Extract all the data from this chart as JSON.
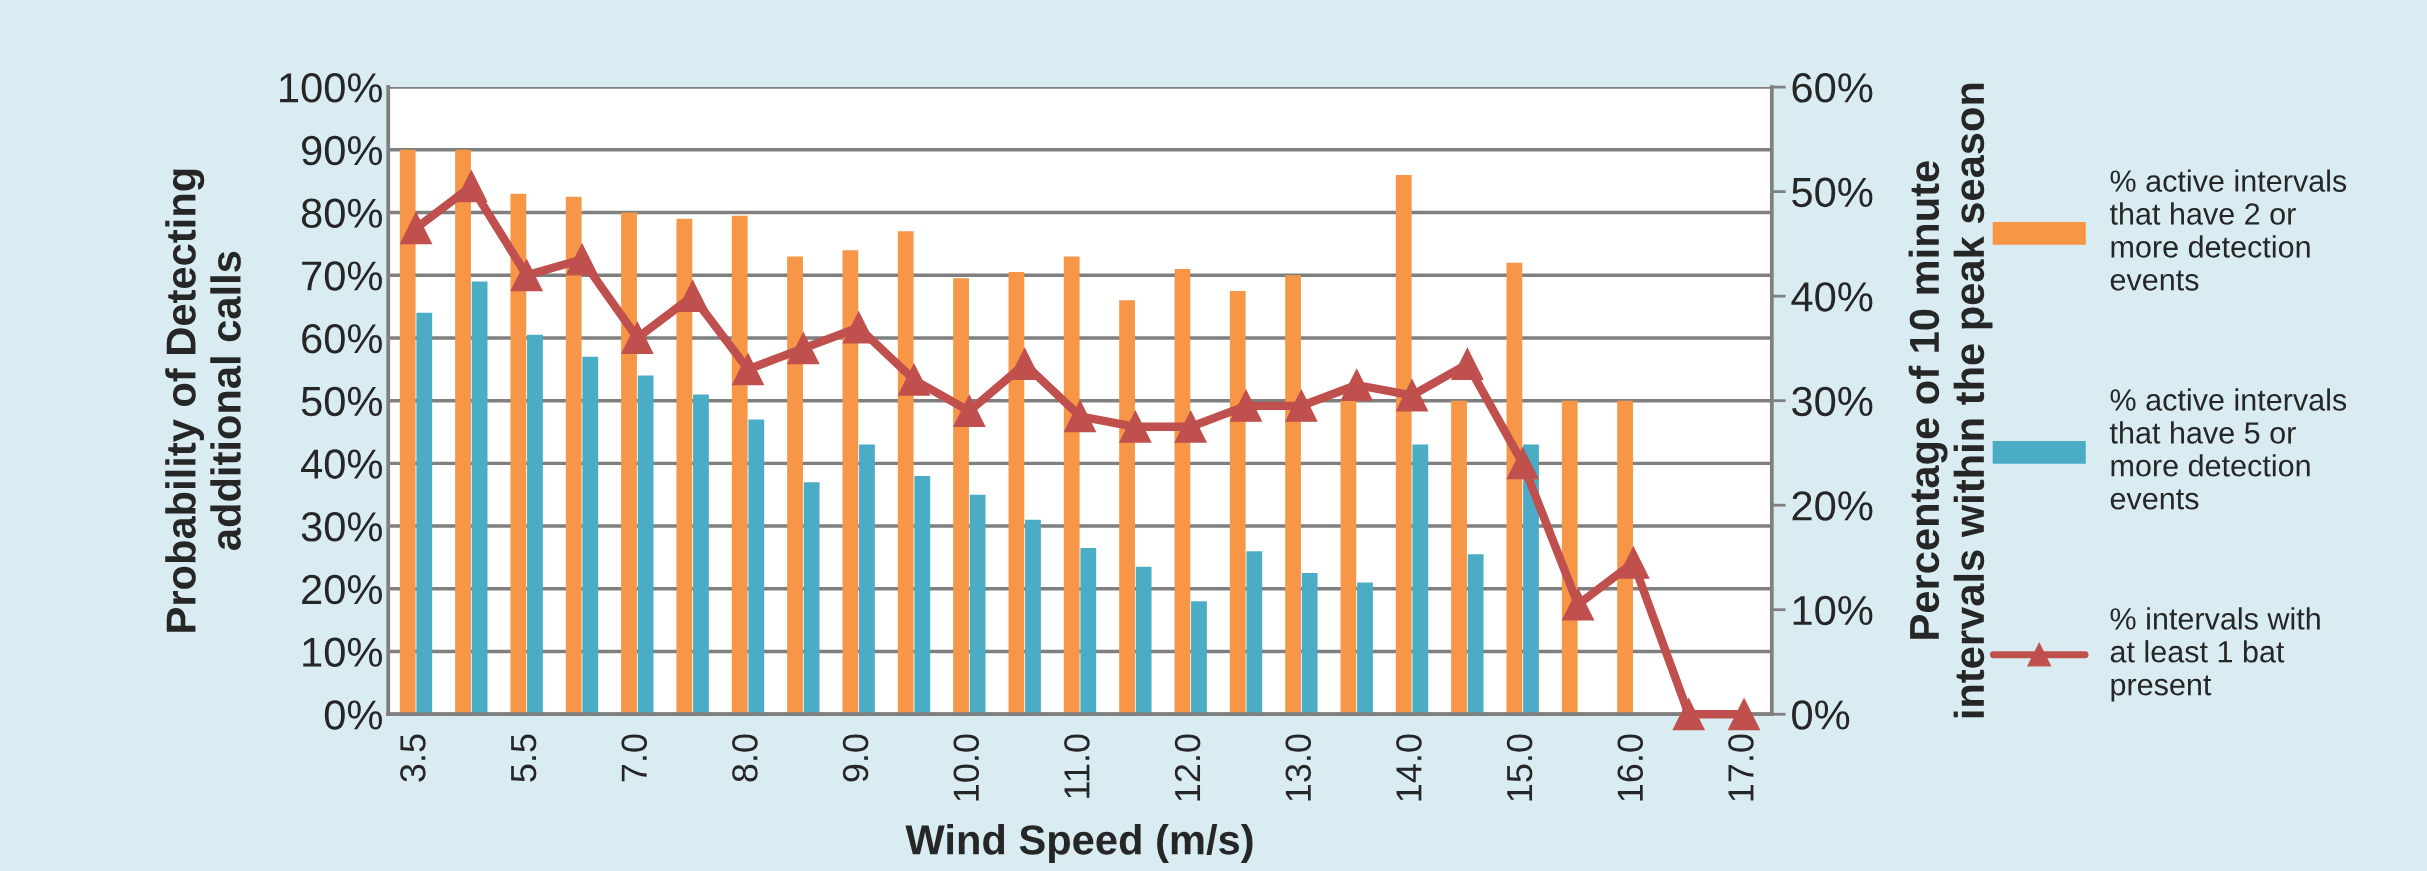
{
  "chart_data": {
    "type": "bar",
    "xlabel": "Wind Speed (m/s)",
    "ylabel": "Probability of Detecting\nadditional calls",
    "y2label": "Percentage of 10 minute\nintervals within the peak season",
    "categories": [
      "3.5",
      null,
      "5.5",
      null,
      "7.0",
      null,
      "8.0",
      null,
      "9.0",
      null,
      "10.0",
      null,
      "11.0",
      null,
      "12.0",
      null,
      "13.0",
      null,
      "14.0",
      null,
      "15.0",
      null,
      "16.0",
      null,
      "17.0"
    ],
    "series": [
      {
        "name": "% active intervals that have 2 or more detection events",
        "color": "#f79646",
        "values": [
          90,
          90,
          83,
          82.5,
          80,
          79,
          79.5,
          73,
          74,
          77,
          69.5,
          70.5,
          73,
          66,
          71,
          67.5,
          70,
          50,
          86,
          50,
          72,
          50,
          50,
          0,
          0
        ]
      },
      {
        "name": "% active intervals that have 5 or more detection events",
        "color": "#4bacc6",
        "values": [
          64,
          69,
          60.5,
          57,
          54,
          51,
          47,
          37,
          43,
          38,
          35,
          31,
          26.5,
          23.5,
          18,
          26,
          22.5,
          21,
          43,
          25.5,
          43,
          0,
          0,
          0,
          0
        ]
      },
      {
        "name": "% intervals with at least 1 bat present",
        "color": "#c0504d",
        "type": "line",
        "axis": "y2",
        "marker": "triangle",
        "values": [
          46.5,
          50.5,
          42,
          43.5,
          36,
          40,
          33,
          35,
          37,
          32,
          29,
          33.5,
          28.5,
          27.5,
          27.5,
          29.5,
          29.5,
          31.5,
          30.5,
          33.5,
          24,
          10.5,
          14.5,
          0,
          0
        ]
      }
    ],
    "ylim": [
      0,
      100
    ],
    "yticks": [
      {
        "value": 0,
        "label": "0%"
      },
      {
        "value": 10,
        "label": "10%"
      },
      {
        "value": 20,
        "label": "20%"
      },
      {
        "value": 30,
        "label": "30%"
      },
      {
        "value": 40,
        "label": "40%"
      },
      {
        "value": 50,
        "label": "50%"
      },
      {
        "value": 60,
        "label": "60%"
      },
      {
        "value": 70,
        "label": "70%"
      },
      {
        "value": 80,
        "label": "80%"
      },
      {
        "value": 90,
        "label": "90%"
      },
      {
        "value": 100,
        "label": "100%"
      }
    ],
    "y2lim": [
      0,
      60
    ],
    "y2ticks": [
      {
        "value": 0,
        "label": "0%"
      },
      {
        "value": 10,
        "label": "10%"
      },
      {
        "value": 20,
        "label": "20%"
      },
      {
        "value": 30,
        "label": "30%"
      },
      {
        "value": 40,
        "label": "40%"
      },
      {
        "value": 50,
        "label": "50%"
      },
      {
        "value": 60,
        "label": "60%"
      }
    ],
    "grid": "y",
    "legend": "right"
  }
}
